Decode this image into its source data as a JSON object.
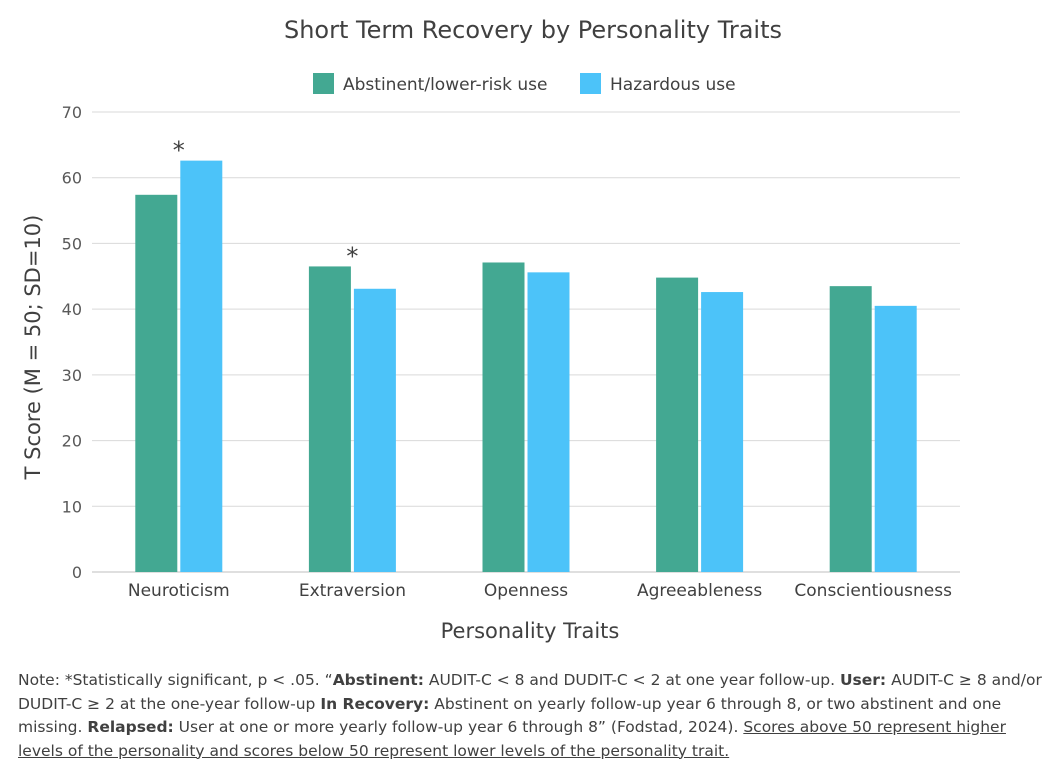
{
  "chart_data": {
    "type": "bar",
    "title": "Short Term Recovery by Personality Traits",
    "xlabel": "Personality Traits",
    "ylabel": "T Score (M = 50; SD=10)",
    "ylim": [
      0,
      70
    ],
    "yticks": [
      0,
      10,
      20,
      30,
      40,
      50,
      60,
      70
    ],
    "grid": true,
    "legend": "top-center",
    "categories": [
      "Neuroticism",
      "Extraversion",
      "Openness",
      "Agreeableness",
      "Conscientiousness"
    ],
    "series": [
      {
        "name": "Abstinent/lower-risk use",
        "color": "#43A892",
        "values": [
          57.4,
          46.5,
          47.1,
          44.8,
          43.5
        ]
      },
      {
        "name": "Hazardous use",
        "color": "#4CC3F9",
        "values": [
          62.6,
          43.1,
          45.6,
          42.6,
          40.5
        ]
      }
    ],
    "annotations": [
      {
        "text": "*",
        "category": "Neuroticism",
        "series": 0,
        "meaning": "statistically significant"
      },
      {
        "text": "*",
        "category": "Extraversion",
        "series": 0,
        "meaning": "statistically significant"
      }
    ],
    "colors": {
      "axis": "#bfbfbf",
      "grid": "#d9d9d9"
    }
  },
  "note": {
    "prefix": "Note: *Statistically significant, p < .05. “",
    "abstinent_label": "Abstinent:",
    "abstinent_text": " AUDIT-C < 8 and DUDIT-C < 2 at one year follow-up. ",
    "user_label": "User:",
    "user_text": " AUDIT-C ≥ 8 and/or DUDIT-C ≥ 2 at the one-year follow-up ",
    "recovery_label": "In Recovery:",
    "recovery_text": " Abstinent on yearly follow-up year 6 through 8, or two abstinent and one missing. ",
    "relapsed_label": "Relapsed:",
    "relapsed_text": " User at one or more yearly follow-up year 6 through 8” (Fodstad, 2024). ",
    "underlined": "Scores above 50 represent higher levels of the personality and scores below 50 represent lower levels of the personality trait. "
  }
}
